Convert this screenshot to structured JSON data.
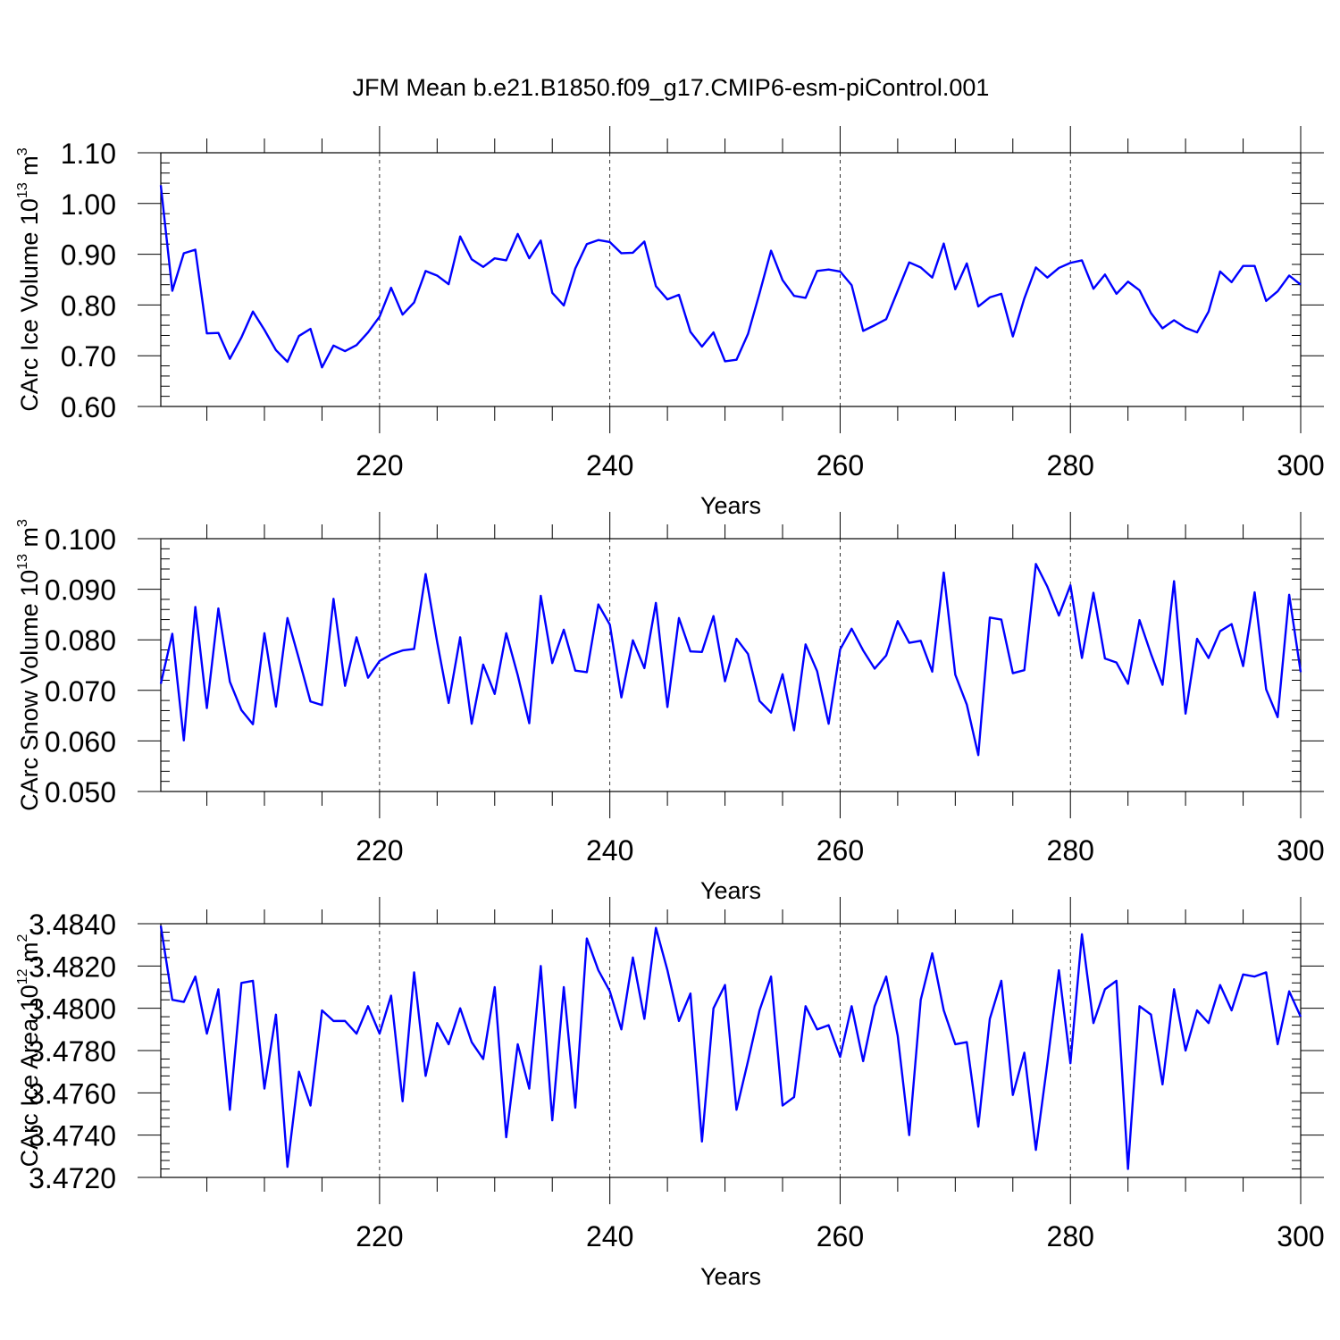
{
  "title": "JFM Mean b.e21.B1850.f09_g17.CMIP6-esm-piControl.001",
  "line_color": "#0000ff",
  "chart_data": [
    {
      "type": "line",
      "title": "JFM Mean b.e21.B1850.f09_g17.CMIP6-esm-piControl.001",
      "xlabel": "Years",
      "ylabel": {
        "text": "CArc Ice Volume 10",
        "exp": "13",
        "tail": " m",
        "unit_exp": "3"
      },
      "xlim": [
        201,
        300
      ],
      "ylim": [
        0.6,
        1.1
      ],
      "xticks": [
        220,
        240,
        260,
        280,
        300
      ],
      "xtick_labels": [
        "220",
        "240",
        "260",
        "280",
        "300"
      ],
      "yticks": [
        0.6,
        0.7,
        0.8,
        0.9,
        1.0,
        1.1
      ],
      "ytick_labels": [
        "0.60",
        "0.70",
        "0.80",
        "0.90",
        "1.00",
        "1.10"
      ],
      "grid": "x-dashed",
      "x": [
        201,
        202,
        203,
        204,
        205,
        206,
        207,
        208,
        209,
        210,
        211,
        212,
        213,
        214,
        215,
        216,
        217,
        218,
        219,
        220,
        221,
        222,
        223,
        224,
        225,
        226,
        227,
        228,
        229,
        230,
        231,
        232,
        233,
        234,
        235,
        236,
        237,
        238,
        239,
        240,
        241,
        242,
        243,
        244,
        245,
        246,
        247,
        248,
        249,
        250,
        251,
        252,
        253,
        254,
        255,
        256,
        257,
        258,
        259,
        260,
        261,
        262,
        263,
        264,
        265,
        266,
        267,
        268,
        269,
        270,
        271,
        272,
        273,
        274,
        275,
        276,
        277,
        278,
        279,
        280,
        281,
        282,
        283,
        284,
        285,
        286,
        287,
        288,
        289,
        290,
        291,
        292,
        293,
        294,
        295,
        296,
        297,
        298,
        299,
        300
      ],
      "series": [
        {
          "name": "CArc Ice Volume",
          "values": [
            1.036,
            0.828,
            0.902,
            0.909,
            0.744,
            0.745,
            0.694,
            0.736,
            0.787,
            0.751,
            0.711,
            0.688,
            0.739,
            0.753,
            0.677,
            0.72,
            0.709,
            0.721,
            0.746,
            0.777,
            0.834,
            0.781,
            0.805,
            0.867,
            0.858,
            0.841,
            0.935,
            0.89,
            0.875,
            0.892,
            0.888,
            0.94,
            0.892,
            0.927,
            0.824,
            0.799,
            0.872,
            0.92,
            0.928,
            0.924,
            0.902,
            0.903,
            0.925,
            0.837,
            0.811,
            0.82,
            0.747,
            0.718,
            0.746,
            0.689,
            0.692,
            0.743,
            0.823,
            0.907,
            0.849,
            0.818,
            0.814,
            0.867,
            0.87,
            0.866,
            0.839,
            0.749,
            0.76,
            0.772,
            0.828,
            0.884,
            0.874,
            0.854,
            0.921,
            0.831,
            0.882,
            0.797,
            0.815,
            0.822,
            0.738,
            0.813,
            0.874,
            0.854,
            0.873,
            0.883,
            0.888,
            0.832,
            0.86,
            0.822,
            0.846,
            0.829,
            0.784,
            0.754,
            0.77,
            0.755,
            0.746,
            0.787,
            0.866,
            0.845,
            0.877,
            0.877,
            0.808,
            0.827,
            0.858,
            0.84
          ]
        }
      ]
    },
    {
      "type": "line",
      "xlabel": "Years",
      "ylabel": {
        "text": "CArc Snow Volume 10",
        "exp": "13",
        "tail": " m",
        "unit_exp": "3"
      },
      "xlim": [
        201,
        300
      ],
      "ylim": [
        0.05,
        0.1
      ],
      "xticks": [
        220,
        240,
        260,
        280,
        300
      ],
      "xtick_labels": [
        "220",
        "240",
        "260",
        "280",
        "300"
      ],
      "yticks": [
        0.05,
        0.06,
        0.07,
        0.08,
        0.09,
        0.1
      ],
      "ytick_labels": [
        "0.050",
        "0.060",
        "0.070",
        "0.080",
        "0.090",
        "0.100"
      ],
      "grid": "x-dashed",
      "x": [
        201,
        202,
        203,
        204,
        205,
        206,
        207,
        208,
        209,
        210,
        211,
        212,
        213,
        214,
        215,
        216,
        217,
        218,
        219,
        220,
        221,
        222,
        223,
        224,
        225,
        226,
        227,
        228,
        229,
        230,
        231,
        232,
        233,
        234,
        235,
        236,
        237,
        238,
        239,
        240,
        241,
        242,
        243,
        244,
        245,
        246,
        247,
        248,
        249,
        250,
        251,
        252,
        253,
        254,
        255,
        256,
        257,
        258,
        259,
        260,
        261,
        262,
        263,
        264,
        265,
        266,
        267,
        268,
        269,
        270,
        271,
        272,
        273,
        274,
        275,
        276,
        277,
        278,
        279,
        280,
        281,
        282,
        283,
        284,
        285,
        286,
        287,
        288,
        289,
        290,
        291,
        292,
        293,
        294,
        295,
        296,
        297,
        298,
        299,
        300
      ],
      "series": [
        {
          "name": "CArc Snow Volume",
          "values": [
            0.0713,
            0.0812,
            0.0601,
            0.0865,
            0.0665,
            0.0862,
            0.0717,
            0.0661,
            0.0633,
            0.0813,
            0.0668,
            0.0843,
            0.0762,
            0.0678,
            0.0671,
            0.0881,
            0.0709,
            0.0805,
            0.0725,
            0.0758,
            0.0771,
            0.0779,
            0.0782,
            0.093,
            0.0796,
            0.0675,
            0.0805,
            0.0634,
            0.0751,
            0.0693,
            0.0813,
            0.073,
            0.0635,
            0.0887,
            0.0754,
            0.082,
            0.0739,
            0.0736,
            0.087,
            0.083,
            0.0686,
            0.0799,
            0.0744,
            0.0873,
            0.0667,
            0.0843,
            0.0777,
            0.0776,
            0.0847,
            0.0718,
            0.0802,
            0.0772,
            0.0679,
            0.0656,
            0.0732,
            0.0621,
            0.0791,
            0.0738,
            0.0634,
            0.0781,
            0.0822,
            0.0779,
            0.0743,
            0.0769,
            0.0837,
            0.0794,
            0.0798,
            0.0737,
            0.0933,
            0.0731,
            0.0672,
            0.0572,
            0.0844,
            0.084,
            0.0734,
            0.074,
            0.095,
            0.0905,
            0.0848,
            0.0908,
            0.0764,
            0.0893,
            0.0763,
            0.0755,
            0.0713,
            0.0839,
            0.0772,
            0.0711,
            0.0916,
            0.0654,
            0.0802,
            0.0764,
            0.0817,
            0.0831,
            0.0748,
            0.0894,
            0.0702,
            0.0647,
            0.0889,
            0.0736
          ]
        }
      ]
    },
    {
      "type": "line",
      "xlabel": "Years",
      "ylabel": {
        "text": "CArc Ice Area 10",
        "exp": "12",
        "tail": " m",
        "unit_exp": "2"
      },
      "xlim": [
        201,
        300
      ],
      "ylim": [
        3.472,
        3.484
      ],
      "xticks": [
        220,
        240,
        260,
        280,
        300
      ],
      "xtick_labels": [
        "220",
        "240",
        "260",
        "280",
        "300"
      ],
      "yticks": [
        3.472,
        3.474,
        3.476,
        3.478,
        3.48,
        3.482,
        3.484
      ],
      "ytick_labels": [
        "3.4720",
        "3.4740",
        "3.4760",
        "3.4780",
        "3.4800",
        "3.4820",
        "3.4840"
      ],
      "grid": "x-dashed",
      "x": [
        201,
        202,
        203,
        204,
        205,
        206,
        207,
        208,
        209,
        210,
        211,
        212,
        213,
        214,
        215,
        216,
        217,
        218,
        219,
        220,
        221,
        222,
        223,
        224,
        225,
        226,
        227,
        228,
        229,
        230,
        231,
        232,
        233,
        234,
        235,
        236,
        237,
        238,
        239,
        240,
        241,
        242,
        243,
        244,
        245,
        246,
        247,
        248,
        249,
        250,
        251,
        252,
        253,
        254,
        255,
        256,
        257,
        258,
        259,
        260,
        261,
        262,
        263,
        264,
        265,
        266,
        267,
        268,
        269,
        270,
        271,
        272,
        273,
        274,
        275,
        276,
        277,
        278,
        279,
        280,
        281,
        282,
        283,
        284,
        285,
        286,
        287,
        288,
        289,
        290,
        291,
        292,
        293,
        294,
        295,
        296,
        297,
        298,
        299,
        300
      ],
      "series": [
        {
          "name": "CArc Ice Area",
          "values": [
            3.4839,
            3.4804,
            3.4803,
            3.4815,
            3.4788,
            3.4809,
            3.4752,
            3.4812,
            3.4813,
            3.4762,
            3.4797,
            3.4725,
            3.477,
            3.4754,
            3.4799,
            3.4794,
            3.4794,
            3.4788,
            3.4801,
            3.4788,
            3.4806,
            3.4756,
            3.4817,
            3.4768,
            3.4793,
            3.4783,
            3.48,
            3.4784,
            3.4776,
            3.481,
            3.4739,
            3.4783,
            3.4762,
            3.482,
            3.4747,
            3.481,
            3.4753,
            3.4833,
            3.4818,
            3.4808,
            3.479,
            3.4824,
            3.4795,
            3.4838,
            3.4818,
            3.4794,
            3.4807,
            3.4737,
            3.48,
            3.4811,
            3.4752,
            3.4775,
            3.4799,
            3.4815,
            3.4754,
            3.4758,
            3.4801,
            3.479,
            3.4792,
            3.4777,
            3.4801,
            3.4775,
            3.4801,
            3.4815,
            3.4787,
            3.474,
            3.4804,
            3.4826,
            3.4799,
            3.4783,
            3.4784,
            3.4744,
            3.4795,
            3.4813,
            3.4759,
            3.4779,
            3.4733,
            3.4774,
            3.4818,
            3.4774,
            3.4835,
            3.4793,
            3.4809,
            3.4813,
            3.4724,
            3.4801,
            3.4797,
            3.4764,
            3.4809,
            3.478,
            3.4799,
            3.4793,
            3.4811,
            3.4799,
            3.4816,
            3.4815,
            3.4817,
            3.4783,
            3.4808,
            3.4796
          ]
        }
      ]
    }
  ]
}
